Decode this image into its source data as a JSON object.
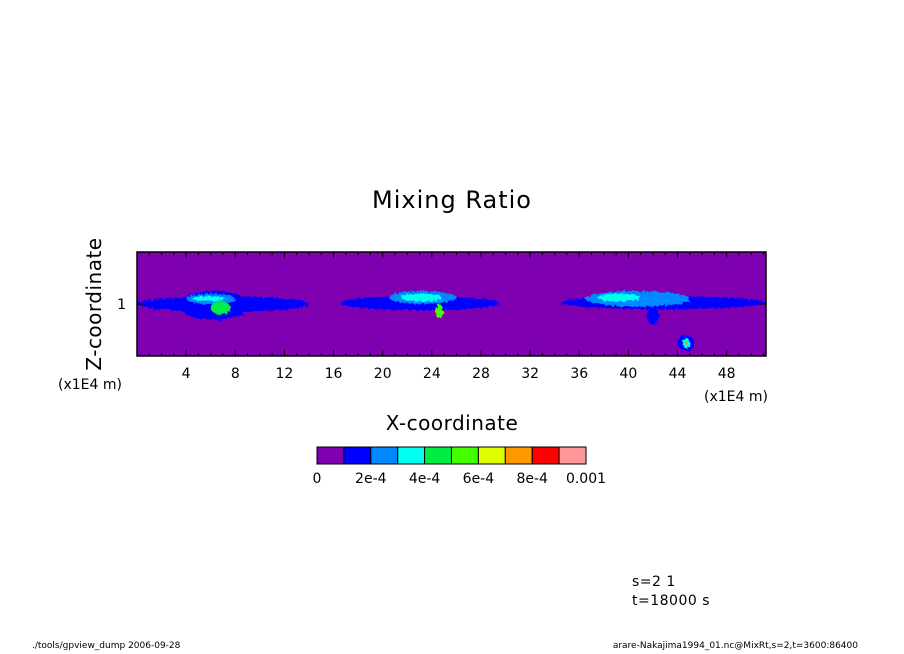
{
  "chart_data": {
    "type": "heatmap",
    "title": "Mixing Ratio",
    "xlabel": "X-coordinate",
    "ylabel": "Z-coordinate",
    "x_unit": "(x1E4 m)",
    "y_unit": "(x1E4 m)",
    "xlim": [
      0,
      51.2
    ],
    "ylim": [
      0,
      2
    ],
    "x_ticks": [
      "4",
      "8",
      "12",
      "16",
      "20",
      "24",
      "28",
      "32",
      "36",
      "40",
      "44",
      "48"
    ],
    "x_tick_values": [
      4,
      8,
      12,
      16,
      20,
      24,
      28,
      32,
      36,
      40,
      44,
      48
    ],
    "y_ticks": [
      "1"
    ],
    "y_tick_values": [
      1
    ],
    "levels": [
      0,
      0.0001,
      0.0002,
      0.0003,
      0.0004,
      0.0005,
      0.0006,
      0.0007,
      0.0008,
      0.0009,
      0.001
    ],
    "colors": [
      "#7f00b0",
      "#0000ff",
      "#0088ff",
      "#00ffee",
      "#00ee44",
      "#44ff00",
      "#ddff00",
      "#ff9900",
      "#ff0000",
      "#ff9999"
    ],
    "colorbar_labels": [
      "0",
      "2e-4",
      "4e-4",
      "6e-4",
      "8e-4",
      "0.001"
    ],
    "colorbar_label_values": [
      0,
      0.0002,
      0.0004,
      0.0006,
      0.0008,
      0.001
    ],
    "background_value": 0,
    "features": [
      {
        "x": [
          0.0,
          14.0
        ],
        "z": [
          0.85,
          1.15
        ],
        "level": 1
      },
      {
        "x": [
          3.4,
          9.2
        ],
        "z": [
          0.7,
          1.25
        ],
        "level": 1
      },
      {
        "x": [
          4.0,
          8.0
        ],
        "z": [
          1.0,
          1.2
        ],
        "level": 2
      },
      {
        "x": [
          4.5,
          7.2
        ],
        "z": [
          1.05,
          1.15
        ],
        "level": 3
      },
      {
        "x": [
          6.0,
          7.6
        ],
        "z": [
          0.8,
          1.05
        ],
        "level": 4
      },
      {
        "x": [
          16.5,
          29.5
        ],
        "z": [
          0.88,
          1.15
        ],
        "level": 1
      },
      {
        "x": [
          20.5,
          26.0
        ],
        "z": [
          1.0,
          1.25
        ],
        "level": 2
      },
      {
        "x": [
          21.5,
          24.8
        ],
        "z": [
          1.05,
          1.2
        ],
        "level": 3
      },
      {
        "x": [
          24.3,
          24.9
        ],
        "z": [
          0.72,
          1.0
        ],
        "level": 5
      },
      {
        "x": [
          34.5,
          51.2
        ],
        "z": [
          0.9,
          1.15
        ],
        "level": 1
      },
      {
        "x": [
          36.5,
          45.0
        ],
        "z": [
          0.95,
          1.25
        ],
        "level": 2
      },
      {
        "x": [
          37.5,
          41.0
        ],
        "z": [
          1.05,
          1.2
        ],
        "level": 3
      },
      {
        "x": [
          41.5,
          42.5
        ],
        "z": [
          0.6,
          0.95
        ],
        "level": 1
      },
      {
        "x": [
          44.0,
          45.4
        ],
        "z": [
          0.1,
          0.4
        ],
        "level": 1
      },
      {
        "x": [
          44.4,
          45.0
        ],
        "z": [
          0.15,
          0.35
        ],
        "level": 3
      },
      {
        "x": [
          44.6,
          44.8
        ],
        "z": [
          0.2,
          0.3
        ],
        "level": 7
      }
    ]
  },
  "info": {
    "s": "s=2 1",
    "t": "t=18000 s"
  },
  "footer": {
    "left": "./tools/gpview_dump  2006-09-28",
    "right": "arare-Nakajima1994_01.nc@MixRt,s=2,t=3600:86400"
  }
}
